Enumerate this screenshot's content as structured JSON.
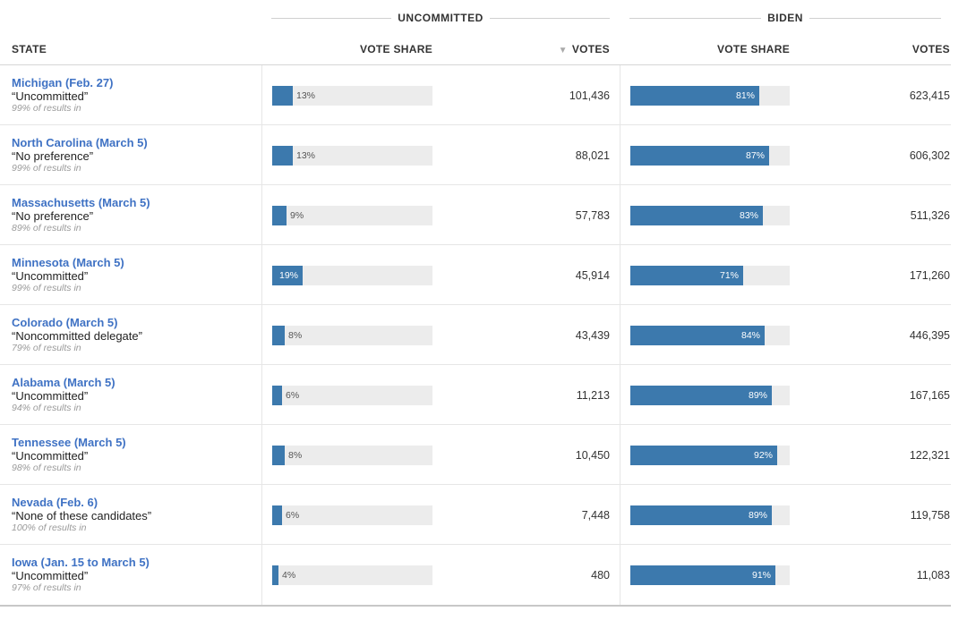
{
  "headers": {
    "uncommitted_group": "UNCOMMITTED",
    "biden_group": "BIDEN",
    "state": "STATE",
    "unc_vote_share": "VOTE SHARE",
    "unc_votes": "VOTES",
    "unc_sort_indicator": "▼",
    "biden_vote_share": "VOTE SHARE",
    "biden_votes": "VOTES"
  },
  "colors": {
    "bar": "#3c79ad",
    "track": "#ececec",
    "state_link": "#3f72c4"
  },
  "rows": [
    {
      "state": "Michigan (Feb. 27)",
      "option": "“Uncommitted”",
      "results_in": "99% of results in",
      "unc_share": 13,
      "unc_share_label": "13%",
      "unc_votes": "101,436",
      "biden_share": 81,
      "biden_share_label": "81%",
      "biden_votes": "623,415"
    },
    {
      "state": "North Carolina (March 5)",
      "option": "“No preference”",
      "results_in": "99% of results in",
      "unc_share": 13,
      "unc_share_label": "13%",
      "unc_votes": "88,021",
      "biden_share": 87,
      "biden_share_label": "87%",
      "biden_votes": "606,302"
    },
    {
      "state": "Massachusetts (March 5)",
      "option": "“No preference”",
      "results_in": "89% of results in",
      "unc_share": 9,
      "unc_share_label": "9%",
      "unc_votes": "57,783",
      "biden_share": 83,
      "biden_share_label": "83%",
      "biden_votes": "511,326"
    },
    {
      "state": "Minnesota (March 5)",
      "option": "“Uncommitted”",
      "results_in": "99% of results in",
      "unc_share": 19,
      "unc_share_label": "19%",
      "unc_votes": "45,914",
      "biden_share": 71,
      "biden_share_label": "71%",
      "biden_votes": "171,260"
    },
    {
      "state": "Colorado (March 5)",
      "option": "“Noncommitted delegate”",
      "results_in": "79% of results in",
      "unc_share": 8,
      "unc_share_label": "8%",
      "unc_votes": "43,439",
      "biden_share": 84,
      "biden_share_label": "84%",
      "biden_votes": "446,395"
    },
    {
      "state": "Alabama (March 5)",
      "option": "“Uncommitted”",
      "results_in": "94% of results in",
      "unc_share": 6,
      "unc_share_label": "6%",
      "unc_votes": "11,213",
      "biden_share": 89,
      "biden_share_label": "89%",
      "biden_votes": "167,165"
    },
    {
      "state": "Tennessee (March 5)",
      "option": "“Uncommitted”",
      "results_in": "98% of results in",
      "unc_share": 8,
      "unc_share_label": "8%",
      "unc_votes": "10,450",
      "biden_share": 92,
      "biden_share_label": "92%",
      "biden_votes": "122,321"
    },
    {
      "state": "Nevada (Feb. 6)",
      "option": "“None of these candidates”",
      "results_in": "100% of results in",
      "unc_share": 6,
      "unc_share_label": "6%",
      "unc_votes": "7,448",
      "biden_share": 89,
      "biden_share_label": "89%",
      "biden_votes": "119,758"
    },
    {
      "state": "Iowa (Jan. 15 to March 5)",
      "option": "“Uncommitted”",
      "results_in": "97% of results in",
      "unc_share": 4,
      "unc_share_label": "4%",
      "unc_votes": "480",
      "biden_share": 91,
      "biden_share_label": "91%",
      "biden_votes": "11,083"
    }
  ]
}
